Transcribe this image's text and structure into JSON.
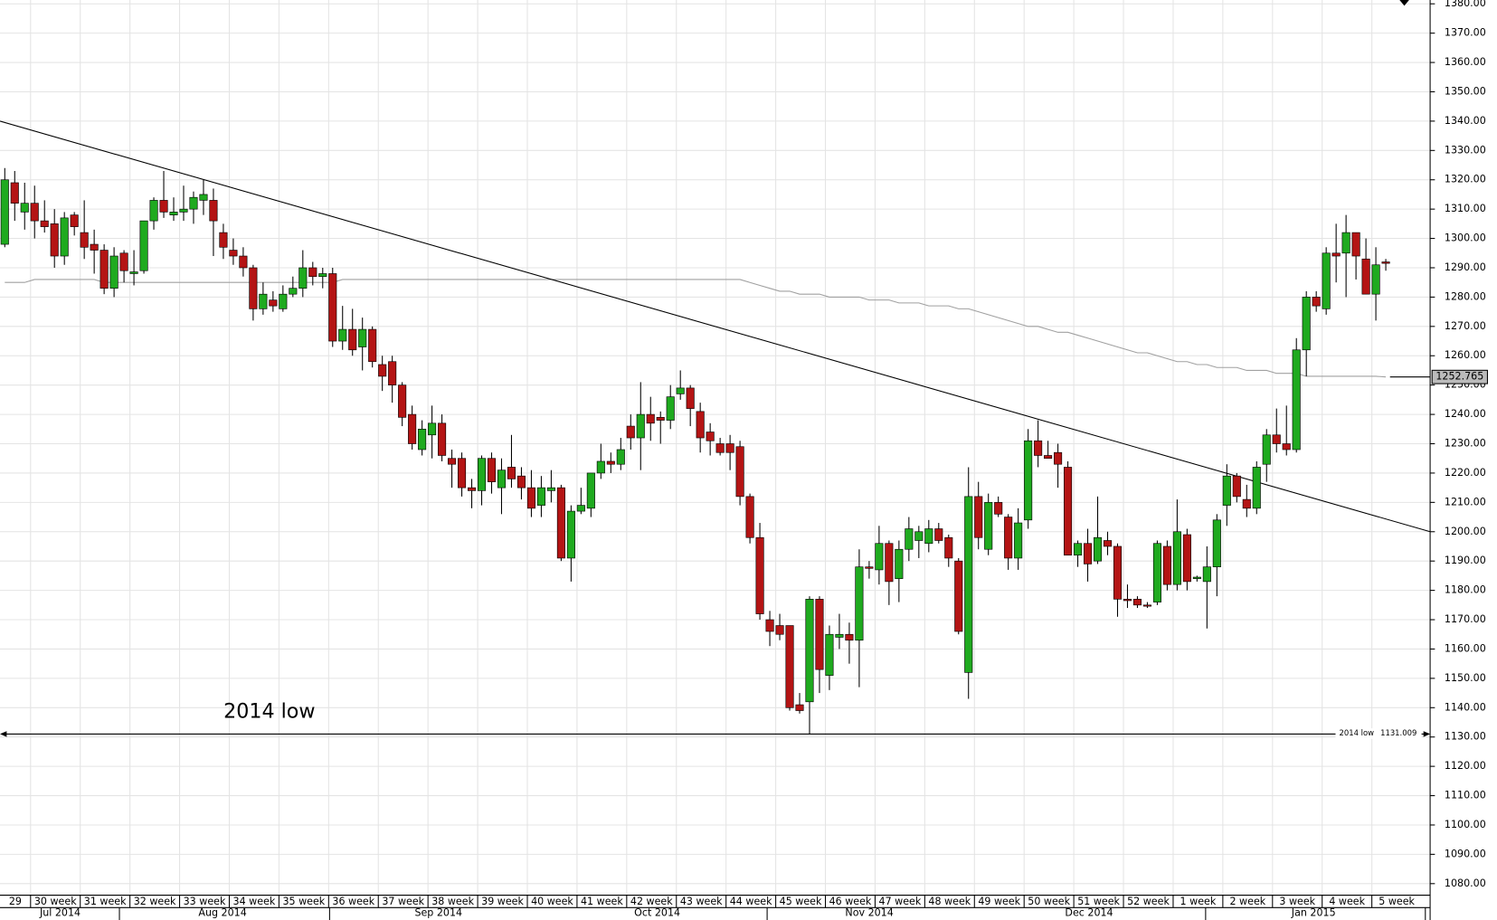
{
  "chart_data": {
    "type": "candlestick",
    "open": [
      1298,
      1319,
      1309,
      1312,
      1306,
      1305,
      1294,
      1308,
      1302,
      1298,
      1296,
      1283,
      1295,
      1288,
      1289,
      1306,
      1313,
      1308,
      1309,
      1310,
      1313,
      1313,
      1302,
      1296,
      1294,
      1290,
      1276,
      1279,
      1276,
      1281,
      1283,
      1290,
      1287,
      1288,
      1265,
      1269,
      1263,
      1269,
      1257,
      1258,
      1250,
      1240,
      1228,
      1233,
      1237,
      1225,
      1225,
      1215,
      1214,
      1225,
      1215,
      1222,
      1219,
      1215,
      1209,
      1214,
      1215,
      1191,
      1207,
      1208,
      1220,
      1224,
      1223,
      1236,
      1232,
      1240,
      1239,
      1238,
      1247,
      1249,
      1241,
      1234,
      1230,
      1230,
      1229,
      1212,
      1198,
      1170,
      1168,
      1168,
      1141,
      1142,
      1177,
      1151,
      1164,
      1165,
      1163,
      1188,
      1187,
      1196,
      1184,
      1194,
      1197,
      1196,
      1201,
      1198,
      1190,
      1152,
      1212,
      1194,
      1210,
      1205,
      1191,
      1204,
      1231,
      1226,
      1227,
      1222,
      1192,
      1196,
      1190,
      1197,
      1195,
      1177,
      1177,
      1175,
      1176,
      1195,
      1182,
      1199,
      1184,
      1183,
      1188,
      1209,
      1219,
      1211,
      1208,
      1223,
      1233,
      1230,
      1228,
      1262,
      1280,
      1276,
      1295,
      1295,
      1302,
      1293,
      1281,
      1292
    ],
    "high": [
      1324,
      1323,
      1319,
      1318,
      1313,
      1310,
      1309,
      1309,
      1313,
      1303,
      1298,
      1297,
      1296,
      1296,
      1306,
      1314,
      1323,
      1314,
      1318,
      1316,
      1320,
      1317,
      1305,
      1300,
      1297,
      1291,
      1285,
      1282,
      1284,
      1287,
      1296,
      1292,
      1290,
      1290,
      1277,
      1276,
      1273,
      1270,
      1260,
      1260,
      1251,
      1243,
      1238,
      1243,
      1240,
      1228,
      1227,
      1218,
      1226,
      1227,
      1225,
      1233,
      1222,
      1221,
      1219,
      1221,
      1216,
      1209,
      1215,
      1219,
      1230,
      1227,
      1232,
      1240,
      1251,
      1246,
      1241,
      1250,
      1255,
      1250,
      1244,
      1237,
      1232,
      1233,
      1231,
      1213,
      1203,
      1173,
      1172,
      1168,
      1145,
      1178,
      1178,
      1168,
      1172,
      1169,
      1194,
      1190,
      1202,
      1197,
      1197,
      1205,
      1202,
      1204,
      1203,
      1199,
      1191,
      1222,
      1217,
      1213,
      1212,
      1206,
      1208,
      1235,
      1238,
      1231,
      1230,
      1224,
      1197,
      1201,
      1212,
      1200,
      1196,
      1182,
      1178,
      1176,
      1197,
      1197,
      1211,
      1201,
      1185,
      1195,
      1206,
      1223,
      1220,
      1216,
      1224,
      1235,
      1242,
      1243,
      1266,
      1282,
      1282,
      1297,
      1305,
      1308,
      1302,
      1300,
      1297,
      1293
    ],
    "low": [
      1297,
      1306,
      1303,
      1300,
      1302,
      1290,
      1291,
      1301,
      1293,
      1288,
      1281,
      1280,
      1285,
      1284,
      1288,
      1303,
      1307,
      1306,
      1306,
      1305,
      1308,
      1294,
      1293,
      1291,
      1287,
      1272,
      1274,
      1275,
      1275,
      1280,
      1280,
      1284,
      1283,
      1263,
      1262,
      1260,
      1255,
      1256,
      1248,
      1244,
      1236,
      1228,
      1226,
      1225,
      1224,
      1215,
      1212,
      1208,
      1209,
      1213,
      1206,
      1215,
      1211,
      1205,
      1205,
      1210,
      1190,
      1183,
      1206,
      1205,
      1218,
      1220,
      1221,
      1228,
      1221,
      1231,
      1230,
      1235,
      1245,
      1236,
      1227,
      1226,
      1226,
      1221,
      1209,
      1196,
      1170,
      1161,
      1163,
      1139,
      1138,
      1131,
      1145,
      1146,
      1160,
      1155,
      1147,
      1184,
      1182,
      1175,
      1176,
      1190,
      1191,
      1193,
      1196,
      1188,
      1165,
      1143,
      1194,
      1192,
      1205,
      1187,
      1187,
      1201,
      1222,
      1225,
      1215,
      1193,
      1188,
      1183,
      1189,
      1192,
      1171,
      1174,
      1174,
      1174,
      1175,
      1180,
      1180,
      1180,
      1183,
      1167,
      1178,
      1202,
      1210,
      1205,
      1206,
      1217,
      1227,
      1226,
      1227,
      1253,
      1275,
      1274,
      1285,
      1280,
      1286,
      1281,
      1272,
      1289
    ],
    "close": [
      1320,
      1312,
      1312,
      1306,
      1304,
      1294,
      1307,
      1304,
      1297,
      1296,
      1283,
      1294,
      1289,
      1288.6,
      1306,
      1313,
      1309,
      1309,
      1310,
      1314,
      1315,
      1306,
      1297,
      1294,
      1290,
      1276,
      1281,
      1277,
      1281,
      1283,
      1290,
      1287,
      1288,
      1265,
      1269,
      1262,
      1269,
      1258,
      1253,
      1250,
      1239,
      1230,
      1235,
      1237,
      1226,
      1223,
      1215,
      1214,
      1225,
      1217,
      1221,
      1218,
      1215,
      1208,
      1215,
      1215,
      1191,
      1207,
      1209,
      1220,
      1224,
      1223,
      1228,
      1232,
      1240,
      1237,
      1238,
      1246,
      1249,
      1242,
      1232,
      1231,
      1227,
      1227,
      1212,
      1198,
      1172,
      1166,
      1165,
      1140,
      1139,
      1177,
      1153,
      1165,
      1165,
      1163,
      1188,
      1187.5,
      1196,
      1183,
      1194,
      1201,
      1200,
      1201,
      1197,
      1191,
      1166,
      1212,
      1198,
      1210,
      1206,
      1191,
      1203,
      1231,
      1226,
      1225,
      1223,
      1192,
      1196,
      1189,
      1198,
      1195,
      1177,
      1176.5,
      1175,
      1174.6,
      1196,
      1182,
      1200,
      1183,
      1184.5,
      1188,
      1204,
      1219,
      1212,
      1208,
      1222,
      1233,
      1230,
      1228,
      1262,
      1280,
      1277,
      1295,
      1294,
      1302,
      1294,
      1281,
      1291,
      1291.5
    ],
    "up_color": "#1faa1f",
    "down_color": "#b41414",
    "moving_average": {
      "color": "#a0a0a0",
      "values": [
        1285,
        1285,
        1285,
        1286,
        1286,
        1286,
        1286,
        1286,
        1286,
        1286,
        1285,
        1285,
        1285,
        1285,
        1285,
        1285,
        1285,
        1285,
        1285,
        1285,
        1285,
        1285,
        1285,
        1285,
        1285,
        1285,
        1285,
        1285,
        1285,
        1285,
        1285,
        1285,
        1285,
        1285,
        1286,
        1286,
        1286,
        1286,
        1286,
        1286,
        1286,
        1286,
        1286,
        1286,
        1286,
        1286,
        1286,
        1286,
        1286,
        1286,
        1286,
        1286,
        1286,
        1286,
        1286,
        1286,
        1286,
        1286,
        1286,
        1286,
        1286,
        1286,
        1286,
        1286,
        1286,
        1286,
        1286,
        1286,
        1286,
        1286,
        1286,
        1286,
        1286,
        1286,
        1286,
        1285,
        1284,
        1283,
        1282,
        1282,
        1281,
        1281,
        1281,
        1280,
        1280,
        1280,
        1280,
        1279,
        1279,
        1279,
        1278,
        1278,
        1278,
        1277,
        1277,
        1277,
        1276,
        1276,
        1275,
        1274,
        1273,
        1272,
        1271,
        1270,
        1270,
        1269,
        1268,
        1268,
        1267,
        1266,
        1265,
        1264,
        1263,
        1262,
        1261,
        1261,
        1260,
        1259,
        1258,
        1258,
        1257,
        1257,
        1256,
        1256,
        1256,
        1255,
        1255,
        1255,
        1254,
        1254,
        1254,
        1253,
        1253,
        1253,
        1253,
        1253,
        1253,
        1253,
        1253,
        1252.765
      ]
    },
    "trendline": [
      1340,
      1200
    ],
    "low_line": {
      "value": 1131.009,
      "label": "2014 low"
    },
    "week_labels": [
      "29",
      "30 week",
      "31 week",
      "32 week",
      "33 week",
      "34 week",
      "35 week",
      "36 week",
      "37 week",
      "38 week",
      "39 week",
      "40 week",
      "41 week",
      "42 week",
      "43 week",
      "44 week",
      "45 week",
      "46 week",
      "47 week",
      "48 week",
      "49 week",
      "50 week",
      "51 week",
      "52 week",
      "1 week",
      "2 week",
      "3 week",
      "4 week",
      "5 week"
    ],
    "month_labels": [
      "Jul 2014",
      "Aug 2014",
      "Sep 2014",
      "Oct 2014",
      "Nov 2014",
      "Dec 2014",
      "Jan 2015"
    ],
    "ylim": [
      1075,
      1380
    ],
    "yticks": [
      {
        "value": 1080,
        "label": "1080.00"
      },
      {
        "value": 1090,
        "label": "1090.00"
      },
      {
        "value": 1100,
        "label": "1100.00"
      },
      {
        "value": 1110,
        "label": "1110.00"
      },
      {
        "value": 1120,
        "label": "1120.00"
      },
      {
        "value": 1130,
        "label": "1130.00"
      },
      {
        "value": 1140,
        "label": "1140.00"
      },
      {
        "value": 1150,
        "label": "1150.00"
      },
      {
        "value": 1160,
        "label": "1160.00"
      },
      {
        "value": 1170,
        "label": "1170.00"
      },
      {
        "value": 1180,
        "label": "1180.00"
      },
      {
        "value": 1190,
        "label": "1190.00"
      },
      {
        "value": 1200,
        "label": "1200.00"
      },
      {
        "value": 1210,
        "label": "1210.00"
      },
      {
        "value": 1220,
        "label": "1220.00"
      },
      {
        "value": 1230,
        "label": "1230.00"
      },
      {
        "value": 1240,
        "label": "1240.00"
      },
      {
        "value": 1250,
        "label": "1250.00"
      },
      {
        "value": 1260,
        "label": "1260.00"
      },
      {
        "value": 1270,
        "label": "1270.00"
      },
      {
        "value": 1280,
        "label": "1280.00"
      },
      {
        "value": 1290,
        "label": "1290.00"
      },
      {
        "value": 1300,
        "label": "1300.00"
      },
      {
        "value": 1310,
        "label": "1310.00"
      },
      {
        "value": 1320,
        "label": "1320.00"
      },
      {
        "value": 1330,
        "label": "1330.00"
      },
      {
        "value": 1340,
        "label": "1340.00"
      },
      {
        "value": 1350,
        "label": "1350.00"
      },
      {
        "value": 1360,
        "label": "1360.00"
      },
      {
        "value": 1370,
        "label": "1370.00"
      },
      {
        "value": 1380,
        "label": "1380.00"
      }
    ],
    "grid": true
  }
}
